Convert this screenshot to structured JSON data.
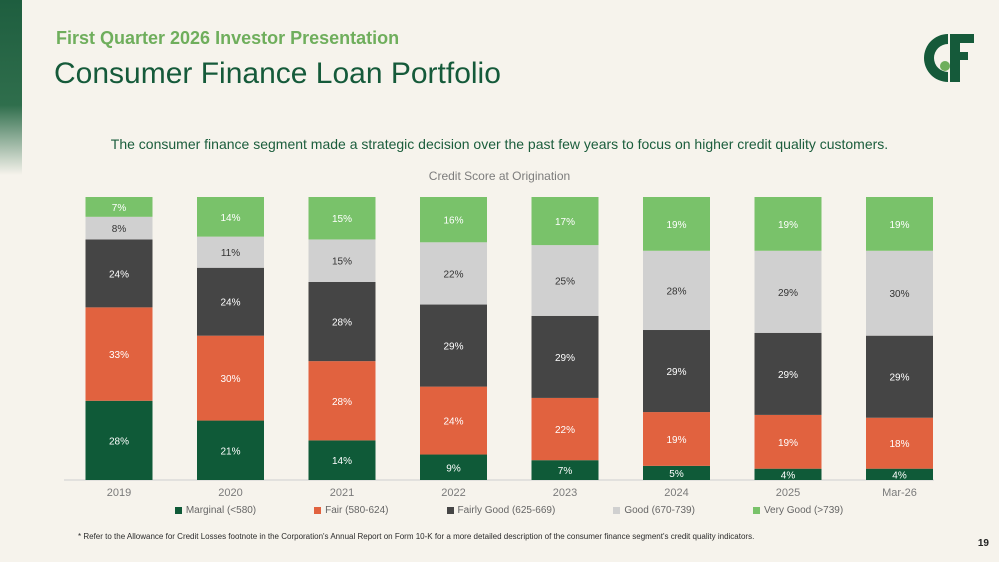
{
  "header": {
    "supertitle": "First Quarter 2026 Investor Presentation",
    "title": "Consumer Finance Loan Portfolio"
  },
  "lead_text": "The consumer finance segment made a strategic decision over the past few years to focus on higher credit quality customers.",
  "footnote": "* Refer to the Allowance for Credit Losses footnote in the Corporation's Annual Report on Form 10-K for a more detailed description of the consumer finance segment's credit quality indicators.",
  "page_number": "19",
  "colors": {
    "brand_green": "#155a3a",
    "accent_green": "#6fae5c",
    "background": "#f6f3ec"
  },
  "chart_data": {
    "type": "bar",
    "stacked": true,
    "percent_stacked": true,
    "title": "Credit Score at Origination",
    "xlabel": "",
    "ylabel": "",
    "ylim": [
      0,
      100
    ],
    "grid": false,
    "legend_position": "bottom",
    "categories": [
      "2019",
      "2020",
      "2021",
      "2022",
      "2023",
      "2024",
      "2025",
      "Mar-26"
    ],
    "series": [
      {
        "name": "Marginal (<580)",
        "color": "#0f5a38",
        "values": [
          28,
          21,
          14,
          9,
          7,
          5,
          4,
          4
        ]
      },
      {
        "name": "Fair (580-624)",
        "color": "#e1623f",
        "values": [
          33,
          30,
          28,
          24,
          22,
          19,
          19,
          18
        ]
      },
      {
        "name": "Fairly Good (625-669)",
        "color": "#454545",
        "values": [
          24,
          24,
          28,
          29,
          29,
          29,
          29,
          29
        ]
      },
      {
        "name": "Good (670-739)",
        "color": "#d0d0d0",
        "values": [
          8,
          11,
          15,
          22,
          25,
          28,
          29,
          30
        ]
      },
      {
        "name": "Very Good (>739)",
        "color": "#79c26a",
        "values": [
          7,
          14,
          15,
          16,
          17,
          19,
          19,
          19
        ]
      }
    ],
    "labels": [
      [
        "28%",
        "21%",
        "14%",
        "9%",
        "7%",
        "5%",
        "4%",
        "4%"
      ],
      [
        "33%",
        "30%",
        "28%",
        "24%",
        "22%",
        "19%",
        "19%",
        "18%"
      ],
      [
        "24%",
        "24%",
        "28%",
        "29%",
        "29%",
        "29%",
        "29%",
        "29%"
      ],
      [
        "8%",
        "11%",
        "15%",
        "22%",
        "25%",
        "28%",
        "29%",
        "30%"
      ],
      [
        "7%",
        "14%",
        "15%",
        "16%",
        "17%",
        "19%",
        "19%",
        "19%"
      ]
    ]
  }
}
